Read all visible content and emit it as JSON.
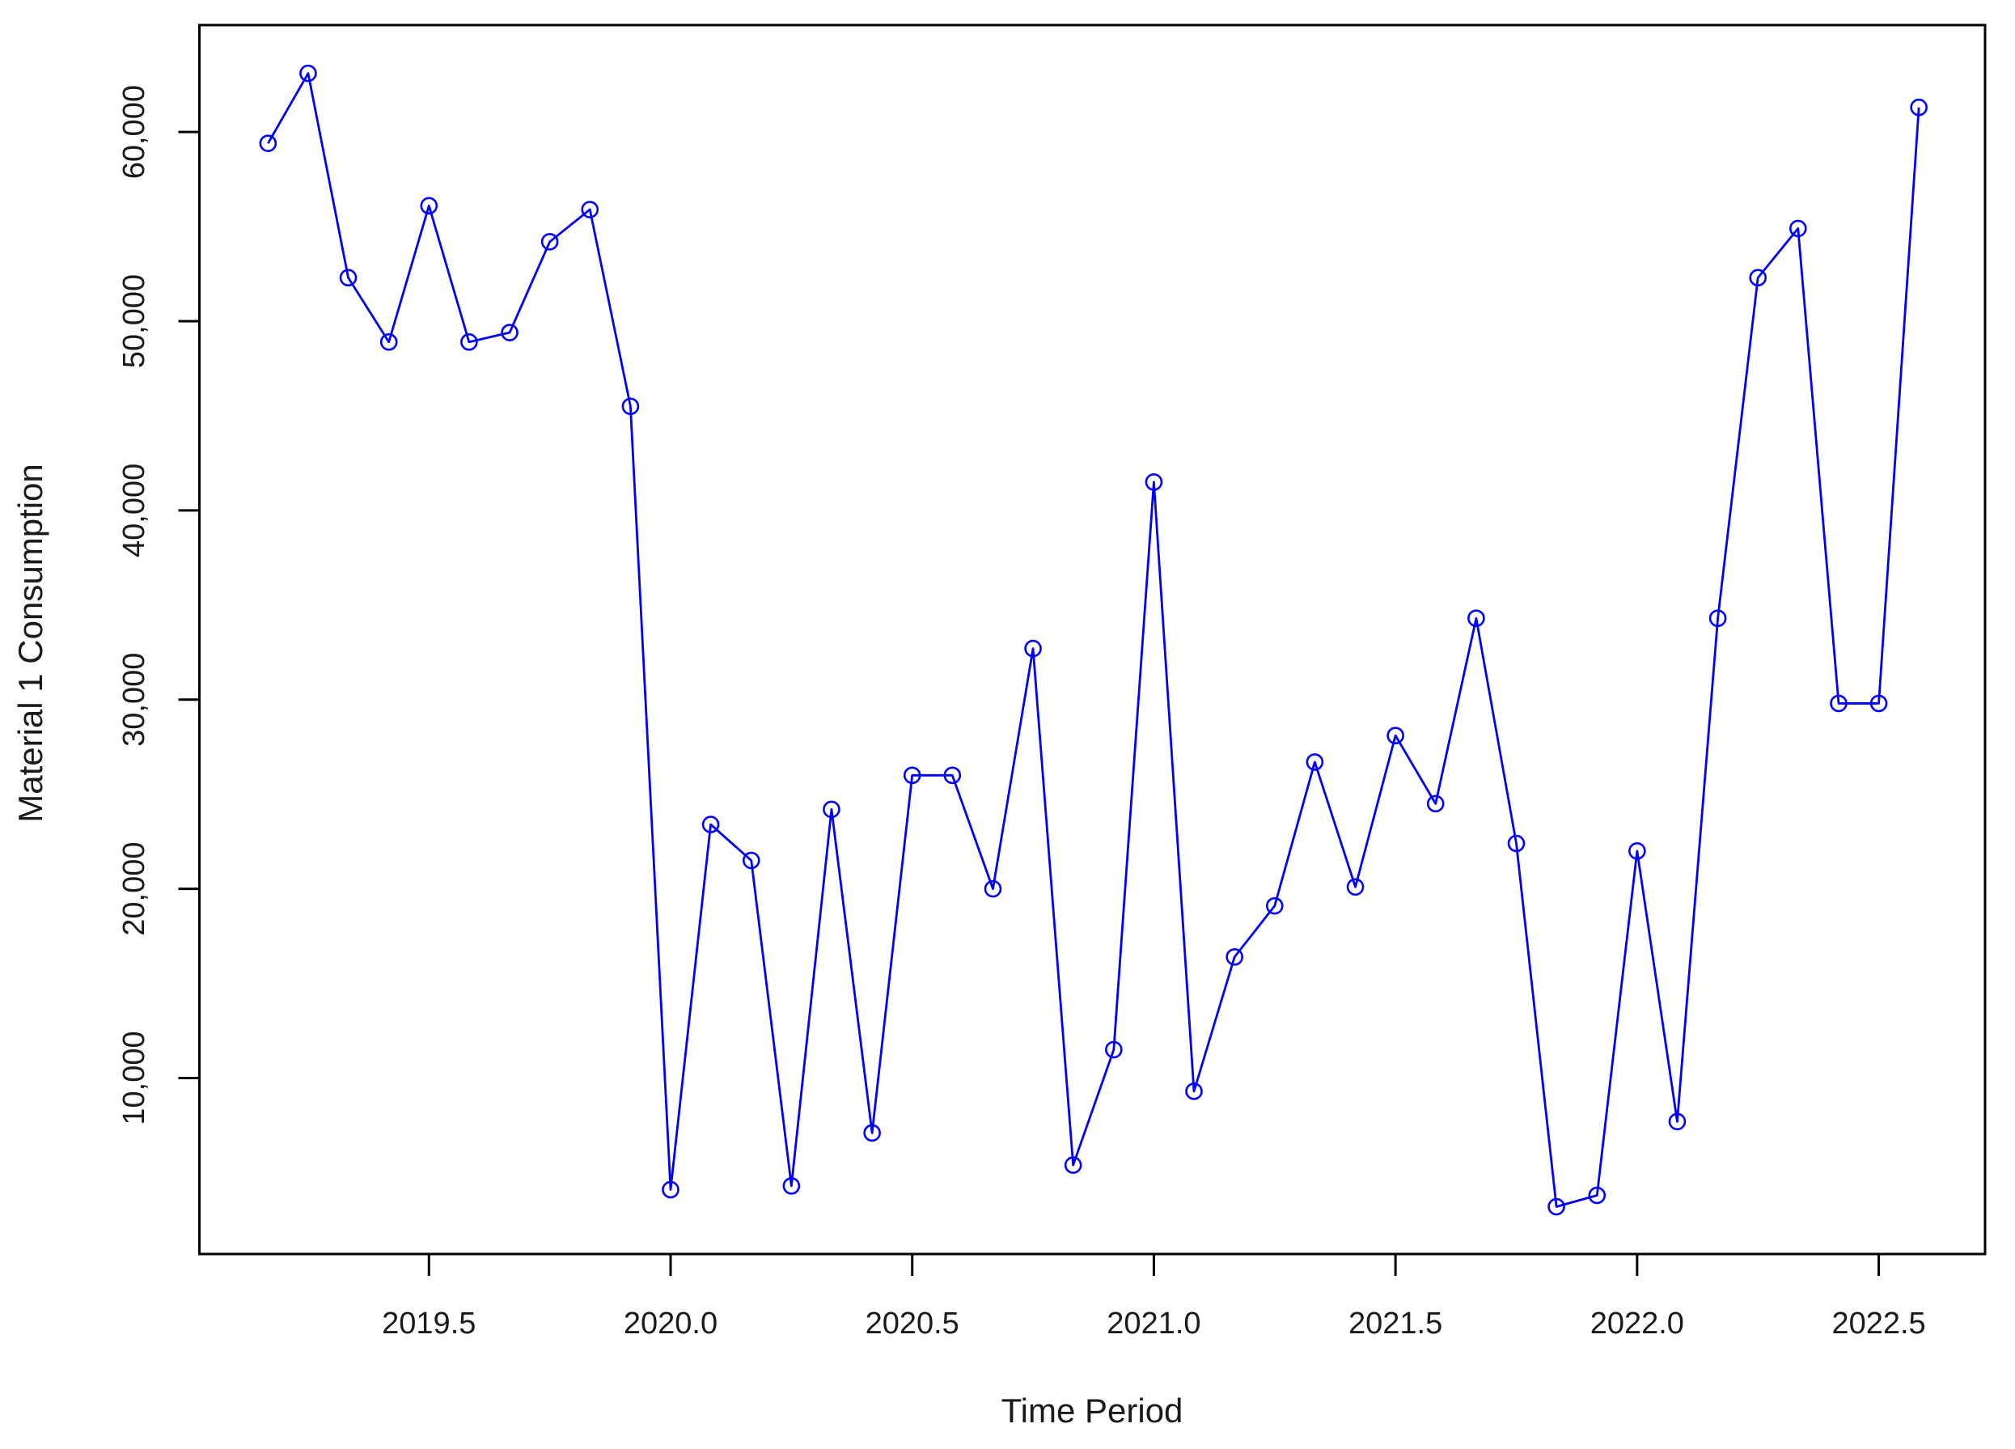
{
  "chart_data": {
    "type": "line",
    "xlabel": "Time Period",
    "ylabel": "Material 1 Consumption",
    "marker": "open-circle",
    "line_style": "solid",
    "grid": false,
    "series_color": "#0000FF",
    "axis_color": "#000000",
    "text_color": "#1A1A1A",
    "background_color": "#FFFFFF",
    "xlim": [
      2019.025,
      2022.72
    ],
    "ylim": [
      700,
      65650
    ],
    "x_ticks": [
      {
        "value": 2019.5,
        "label": "2019.5"
      },
      {
        "value": 2020.0,
        "label": "2020.0"
      },
      {
        "value": 2020.5,
        "label": "2020.5"
      },
      {
        "value": 2021.0,
        "label": "2021.0"
      },
      {
        "value": 2021.5,
        "label": "2021.5"
      },
      {
        "value": 2022.0,
        "label": "2022.0"
      },
      {
        "value": 2022.5,
        "label": "2022.5"
      }
    ],
    "y_ticks": [
      {
        "value": 10000,
        "label": "10,000"
      },
      {
        "value": 20000,
        "label": "20,000"
      },
      {
        "value": 30000,
        "label": "30,000"
      },
      {
        "value": 40000,
        "label": "40,000"
      },
      {
        "value": 50000,
        "label": "50,000"
      },
      {
        "value": 60000,
        "label": "60,000"
      }
    ],
    "x": [
      2019.167,
      2019.25,
      2019.333,
      2019.417,
      2019.5,
      2019.583,
      2019.667,
      2019.75,
      2019.833,
      2019.917,
      2020.0,
      2020.083,
      2020.167,
      2020.25,
      2020.333,
      2020.417,
      2020.5,
      2020.583,
      2020.667,
      2020.75,
      2020.833,
      2020.917,
      2021.0,
      2021.083,
      2021.167,
      2021.25,
      2021.333,
      2021.417,
      2021.5,
      2021.583,
      2021.667,
      2021.75,
      2021.833,
      2021.917,
      2022.0,
      2022.083,
      2022.167,
      2022.25,
      2022.333,
      2022.417,
      2022.5,
      2022.583
    ],
    "values": [
      59400,
      63100,
      52300,
      48900,
      56100,
      48900,
      49400,
      54200,
      55900,
      45500,
      4100,
      23400,
      21500,
      4300,
      24200,
      7100,
      26000,
      26000,
      20000,
      32700,
      5400,
      11500,
      41500,
      9300,
      16400,
      19100,
      26700,
      20100,
      28100,
      24500,
      34300,
      22400,
      3200,
      3800,
      22000,
      7700,
      34300,
      52300,
      54900,
      29800,
      29800,
      61300
    ]
  }
}
